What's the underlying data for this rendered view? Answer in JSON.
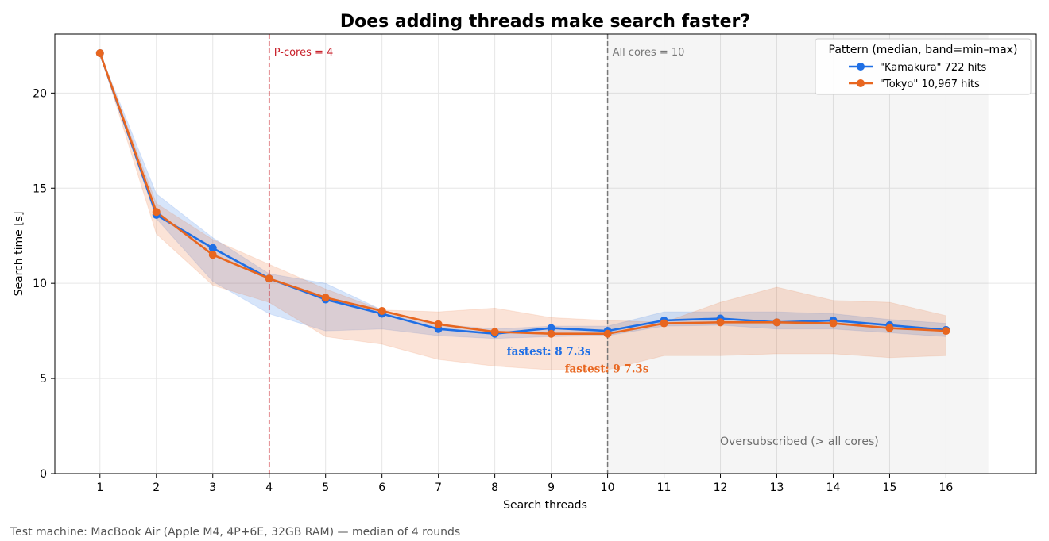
{
  "chart_data": {
    "type": "line",
    "title": "Does adding threads make search faster?",
    "xlabel": "Search threads",
    "ylabel": "Search time [s]",
    "xlim": [
      0.2,
      17.6
    ],
    "ylim": [
      0,
      23.1
    ],
    "x_ticks": [
      1,
      2,
      3,
      4,
      5,
      6,
      7,
      8,
      9,
      10,
      11,
      12,
      13,
      14,
      15,
      16
    ],
    "y_ticks": [
      0,
      5,
      10,
      15,
      20
    ],
    "grid": true,
    "legend": {
      "title": "Pattern (median, band=min–max)",
      "placement": "top-right"
    },
    "x": [
      1,
      2,
      3,
      4,
      5,
      6,
      7,
      8,
      9,
      10,
      11,
      12,
      13,
      14,
      15,
      16
    ],
    "series": [
      {
        "name": "\"Kamakura\"  722 hits",
        "color": "#1f6fe5",
        "median": [
          22.1,
          13.6,
          11.85,
          10.25,
          9.15,
          8.4,
          7.6,
          7.35,
          7.65,
          7.5,
          8.05,
          8.15,
          7.95,
          8.05,
          7.8,
          7.55
        ],
        "min": [
          22.1,
          13.4,
          10.1,
          8.4,
          7.5,
          7.6,
          7.25,
          7.1,
          7.2,
          7.25,
          7.75,
          7.8,
          7.6,
          7.6,
          7.4,
          7.2
        ],
        "max": [
          22.1,
          14.7,
          12.4,
          10.5,
          10.0,
          8.6,
          7.85,
          7.6,
          7.75,
          7.75,
          8.5,
          8.5,
          8.5,
          8.4,
          8.1,
          7.9
        ]
      },
      {
        "name": "\"Tokyo\"  10,967 hits",
        "color": "#e8661f",
        "median": [
          22.1,
          13.75,
          11.5,
          10.25,
          9.25,
          8.55,
          7.85,
          7.45,
          7.35,
          7.35,
          7.9,
          7.95,
          7.95,
          7.9,
          7.65,
          7.5
        ],
        "min": [
          22.1,
          12.6,
          9.9,
          9.0,
          7.2,
          6.8,
          6.0,
          5.65,
          5.45,
          5.45,
          6.2,
          6.2,
          6.3,
          6.3,
          6.1,
          6.2
        ],
        "max": [
          22.1,
          14.2,
          12.3,
          11.0,
          9.7,
          8.6,
          8.5,
          8.7,
          8.2,
          8.05,
          7.95,
          9.0,
          9.8,
          9.1,
          9.0,
          8.3
        ]
      }
    ],
    "vlines": [
      {
        "x": 4,
        "label": "P-cores = 4",
        "color": "#c8202a"
      },
      {
        "x": 10,
        "label": "All cores = 10",
        "color": "#777777"
      }
    ],
    "shaded_region": {
      "x_start": 10,
      "x_end": 16.75,
      "label": "Oversubscribed (> all cores)"
    },
    "annotations": [
      {
        "text": "fastest: 8  7.3s",
        "series": 0
      },
      {
        "text": "fastest: 9  7.3s",
        "series": 1
      }
    ],
    "footer": "Test machine: MacBook Air (Apple M4, 4P+6E, 32GB RAM) — median of 4 rounds"
  }
}
